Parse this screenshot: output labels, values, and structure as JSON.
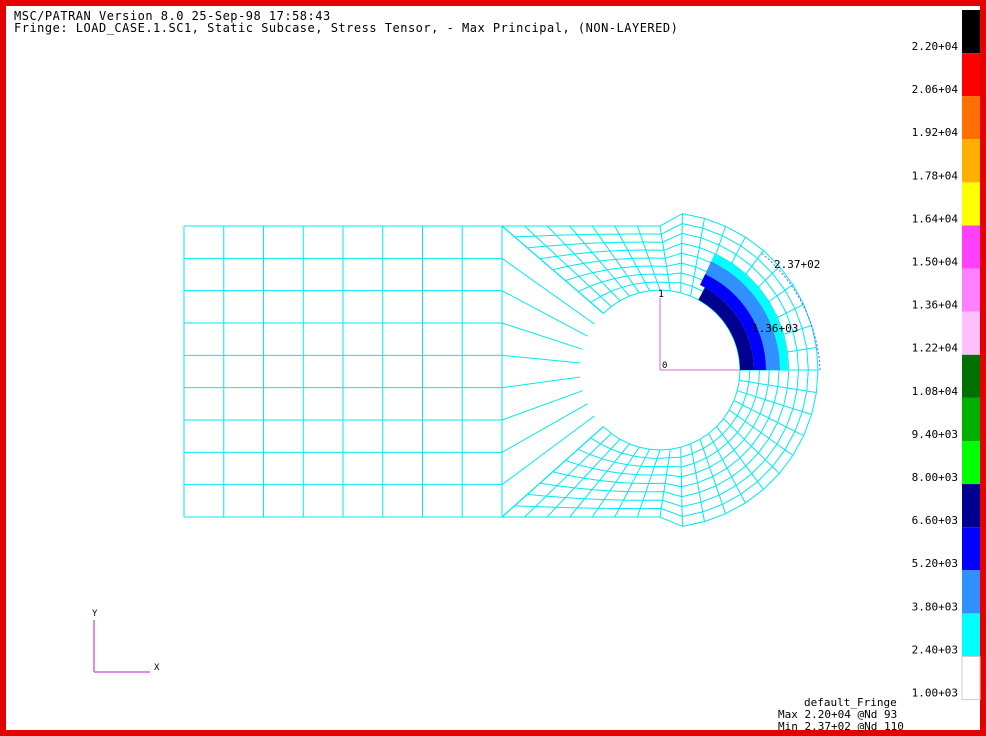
{
  "header": {
    "line1": "MSC/PATRAN Version 8.0 25-Sep-98 17:58:43",
    "line2": "Fringe: LOAD_CASE.1.SC1, Static Subcase, Stress Tensor, - Max Principal, (NON-LAYERED)"
  },
  "legend": {
    "labels": [
      "2.20+04",
      "2.06+04",
      "1.92+04",
      "1.78+04",
      "1.64+04",
      "1.50+04",
      "1.36+04",
      "1.22+04",
      "1.08+04",
      "9.40+03",
      "8.00+03",
      "6.60+03",
      "5.20+03",
      "3.80+03",
      "2.40+03",
      "1.00+03"
    ],
    "colors": [
      "#000000",
      "#ff0000",
      "#ff7000",
      "#ffb000",
      "#ffff00",
      "#ff40ff",
      "#ff80ff",
      "#ffc0ff",
      "#007000",
      "#00b000",
      "#00ff00",
      "#000090",
      "#0000ff",
      "#3090ff",
      "#00ffff",
      "#ffffff"
    ]
  },
  "annotations": {
    "max_node_value": "2.37+02",
    "mid_value": "1.36+03",
    "node_label": "1",
    "origin_label": "0"
  },
  "triad": {
    "x_label": "X",
    "y_label": "Y"
  },
  "footer": {
    "line1": "default_Fringe",
    "line2": "Max 2.20+04 @Nd 93",
    "line3": "Min 2.37+02 @Nd 110"
  },
  "colors": {
    "mesh": "#00e8f0",
    "frame": "#e50000",
    "axes": "#e060e0"
  }
}
